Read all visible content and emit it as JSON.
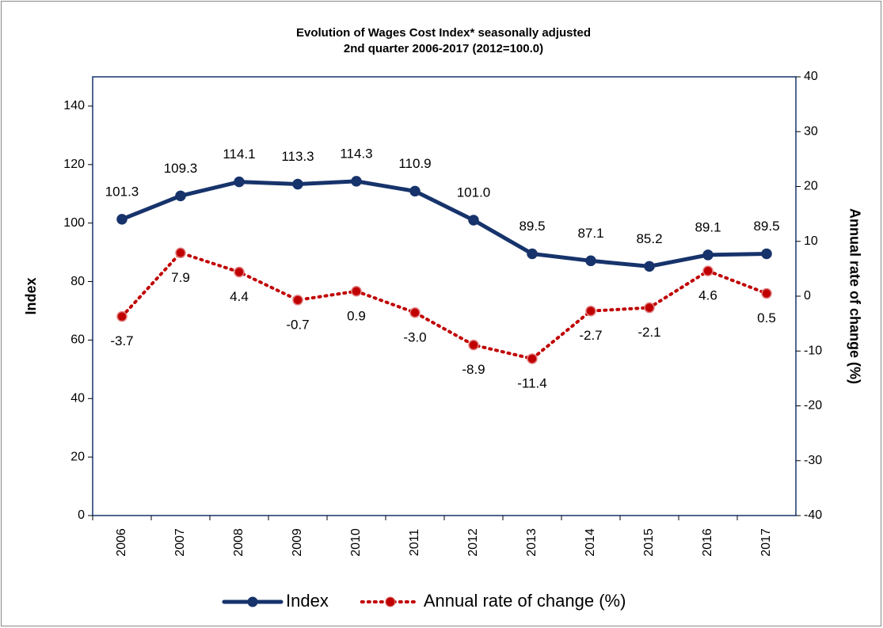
{
  "chart_data": {
    "type": "line",
    "title": "Evolution of Wages Cost Index* seasonally adjusted",
    "subtitle": "2nd quarter 2006-2017 (2012=100.0)",
    "y_label": "Index",
    "y2_label": "Annual rate of change (%)",
    "categories": [
      "2006",
      "2007",
      "2008",
      "2009",
      "2010",
      "2011",
      "2012",
      "2013",
      "2014",
      "2015",
      "2016",
      "2017"
    ],
    "series": [
      {
        "name": "Index",
        "color": "#17336b",
        "style": "solid",
        "values": [
          101.3,
          109.3,
          114.1,
          113.3,
          114.3,
          110.9,
          101.0,
          89.5,
          87.1,
          85.2,
          89.1,
          89.5
        ],
        "value_labels": [
          "101.3",
          "109.3",
          "114.1",
          "113.3",
          "114.3",
          "110.9",
          "101.0",
          "89.5",
          "87.1",
          "85.2",
          "89.1",
          "89.5"
        ]
      },
      {
        "name": "Annual rate of change (%)",
        "color": "#c00000",
        "style": "dotted",
        "axis": "y2",
        "values": [
          -3.7,
          7.9,
          4.4,
          -0.7,
          0.9,
          -3.0,
          -8.9,
          -11.4,
          -2.7,
          -2.1,
          4.6,
          0.5
        ],
        "value_labels": [
          "-3.7",
          "7.9",
          "4.4",
          "-0.7",
          "0.9",
          "-3.0",
          "-8.9",
          "-11.4",
          "-2.7",
          "-2.1",
          "4.6",
          "0.5"
        ]
      }
    ],
    "ylim": [
      0,
      150
    ],
    "yticks": [
      0,
      20,
      40,
      60,
      80,
      100,
      120,
      140
    ],
    "y2lim": [
      -40,
      40
    ],
    "y2ticks": [
      -40,
      -30,
      -20,
      -10,
      0,
      10,
      20,
      30,
      40
    ],
    "grid": false,
    "legend": "bottom"
  }
}
